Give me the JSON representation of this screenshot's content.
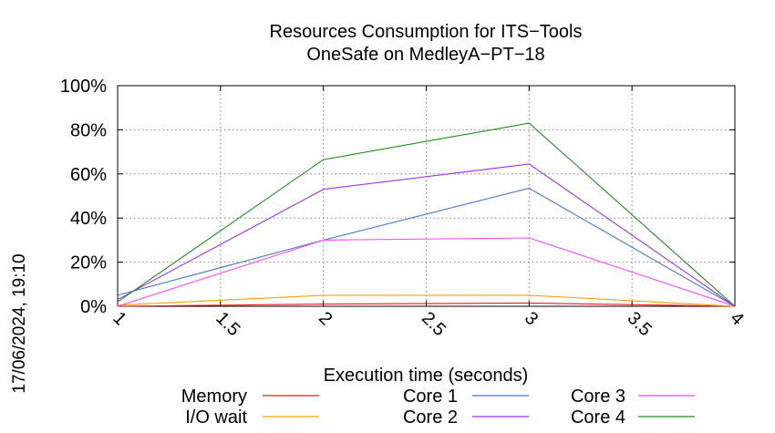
{
  "chart_data": {
    "type": "line",
    "title": [
      "Resources Consumption for ITS−Tools",
      "OneSafe on MedleyA−PT−18"
    ],
    "xlabel": "Execution time (seconds)",
    "ylabel": "",
    "xlim": [
      1,
      4
    ],
    "ylim": [
      0,
      100
    ],
    "x_ticks": [
      "1",
      "1.5",
      "2",
      "2.5",
      "3",
      "3.5",
      "4"
    ],
    "y_ticks": [
      "0%",
      "20%",
      "40%",
      "60%",
      "80%",
      "100%"
    ],
    "grid": true,
    "legend_position": "bottom",
    "timestamp": "17/06/2024, 19:10",
    "x": [
      1,
      2,
      3,
      4
    ],
    "series": [
      {
        "name": "Memory",
        "color": "#e41a1c",
        "values": [
          0,
          1,
          1.5,
          0
        ]
      },
      {
        "name": "I/O wait",
        "color": "#f5a300",
        "values": [
          0.5,
          5,
          5,
          0
        ]
      },
      {
        "name": "Core 1",
        "color": "#4a78c2",
        "values": [
          5,
          30,
          53.5,
          0
        ]
      },
      {
        "name": "Core 2",
        "color": "#9b30f0",
        "values": [
          3,
          53,
          64.5,
          0
        ]
      },
      {
        "name": "Core 3",
        "color": "#ff44ff",
        "values": [
          0,
          30,
          31,
          0
        ]
      },
      {
        "name": "Core 4",
        "color": "#1b8f1b",
        "values": [
          2,
          66.5,
          83,
          0
        ]
      }
    ]
  }
}
